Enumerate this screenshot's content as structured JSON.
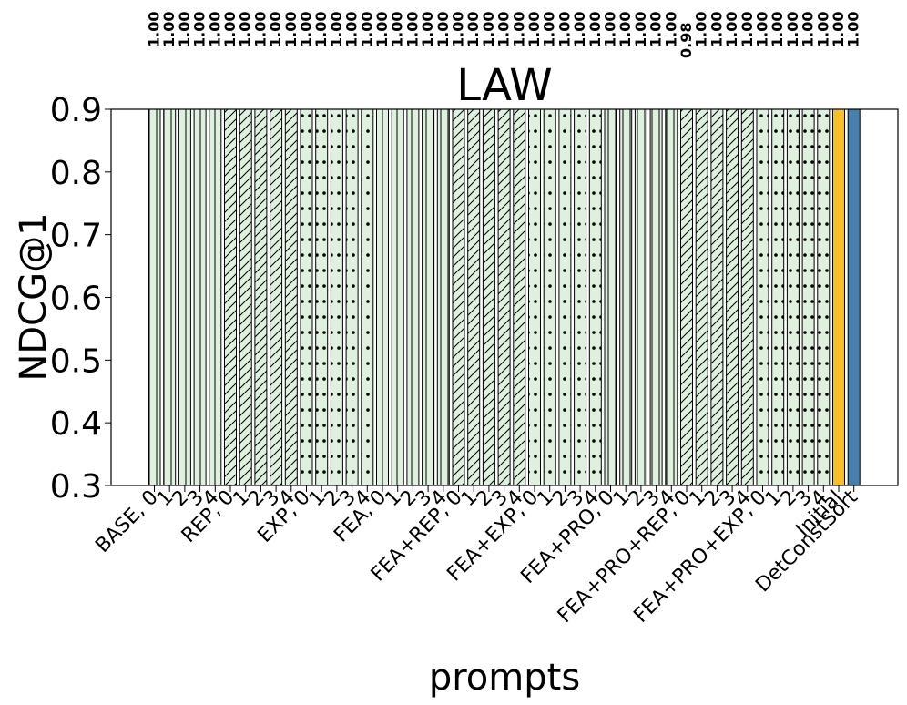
{
  "chart_data": {
    "type": "bar",
    "title": "LAW",
    "xlabel": "prompts",
    "ylabel": "NDCG@1",
    "ylim": [
      0.3,
      0.9
    ],
    "yticks": [
      "0.3",
      "0.4",
      "0.5",
      "0.6",
      "0.7",
      "0.8",
      "0.9"
    ],
    "grid": false,
    "categories": [
      "BASE, 0",
      "1",
      "2",
      "3",
      "4",
      "REP, 0",
      "1",
      "2",
      "3",
      "4",
      "EXP, 0",
      "1",
      "2",
      "3",
      "4",
      "FEA, 0",
      "1",
      "2",
      "3",
      "4",
      "FEA+REP, 0",
      "1",
      "2",
      "3",
      "4",
      "FEA+EXP, 0",
      "1",
      "2",
      "3",
      "4",
      "FEA+PRO, 0",
      "1",
      "2",
      "3",
      "4",
      "FEA+PRO+REP, 0",
      "1",
      "2",
      "3",
      "4",
      "FEA+PRO+EXP, 0",
      "1",
      "2",
      "3",
      "4",
      "Initial",
      "DetConstSort"
    ],
    "values": [
      1.0,
      1.0,
      1.0,
      1.0,
      1.0,
      1.0,
      1.0,
      1.0,
      1.0,
      1.0,
      1.0,
      1.0,
      1.0,
      1.0,
      1.0,
      1.0,
      1.0,
      1.0,
      1.0,
      1.0,
      1.0,
      1.0,
      1.0,
      1.0,
      1.0,
      1.0,
      1.0,
      1.0,
      1.0,
      1.0,
      1.0,
      1.0,
      1.0,
      1.0,
      1.0,
      0.98,
      1.0,
      1.0,
      1.0,
      1.0,
      1.0,
      1.0,
      1.0,
      1.0,
      1.0,
      1.0,
      1.0
    ],
    "value_labels": [
      "1.00",
      "1.00",
      "1.00",
      "1.00",
      "1.00",
      "1.00",
      "1.00",
      "1.00",
      "1.00",
      "1.00",
      "1.00",
      "1.00",
      "1.00",
      "1.00",
      "1.00",
      "1.00",
      "1.00",
      "1.00",
      "1.00",
      "1.00",
      "1.00",
      "1.00",
      "1.00",
      "1.00",
      "1.00",
      "1.00",
      "1.00",
      "1.00",
      "1.00",
      "1.00",
      "1.00",
      "1.00",
      "1.00",
      "1.00",
      "1.00",
      "0.98",
      "1.00",
      "1.00",
      "1.00",
      "1.00",
      "1.00",
      "1.00",
      "1.00",
      "1.00",
      "1.00",
      "1.00",
      "1.00"
    ],
    "patterns": [
      "vertical",
      "vertical",
      "vertical",
      "vertical",
      "vertical",
      "diagonal",
      "diagonal",
      "diagonal",
      "diagonal",
      "diagonal",
      "dots",
      "dots",
      "dots",
      "dots",
      "dots",
      "vertical",
      "vertical",
      "vertical",
      "vertical",
      "vertical",
      "diagonal",
      "diagonal",
      "diagonal",
      "diagonal",
      "diagonal",
      "dots",
      "dots",
      "dots",
      "dots",
      "dots",
      "vertical",
      "vertical",
      "vertical",
      "vertical",
      "vertical",
      "diagonal",
      "diagonal",
      "diagonal",
      "diagonal",
      "diagonal",
      "dots",
      "dots",
      "dots",
      "dots",
      "dots",
      "solid",
      "solid"
    ],
    "colors": {
      "prompt_bars": "#dff0df",
      "Initial": "#f5bf2a",
      "DetConstSort": "#4a7fad",
      "edge": "#000000"
    }
  }
}
